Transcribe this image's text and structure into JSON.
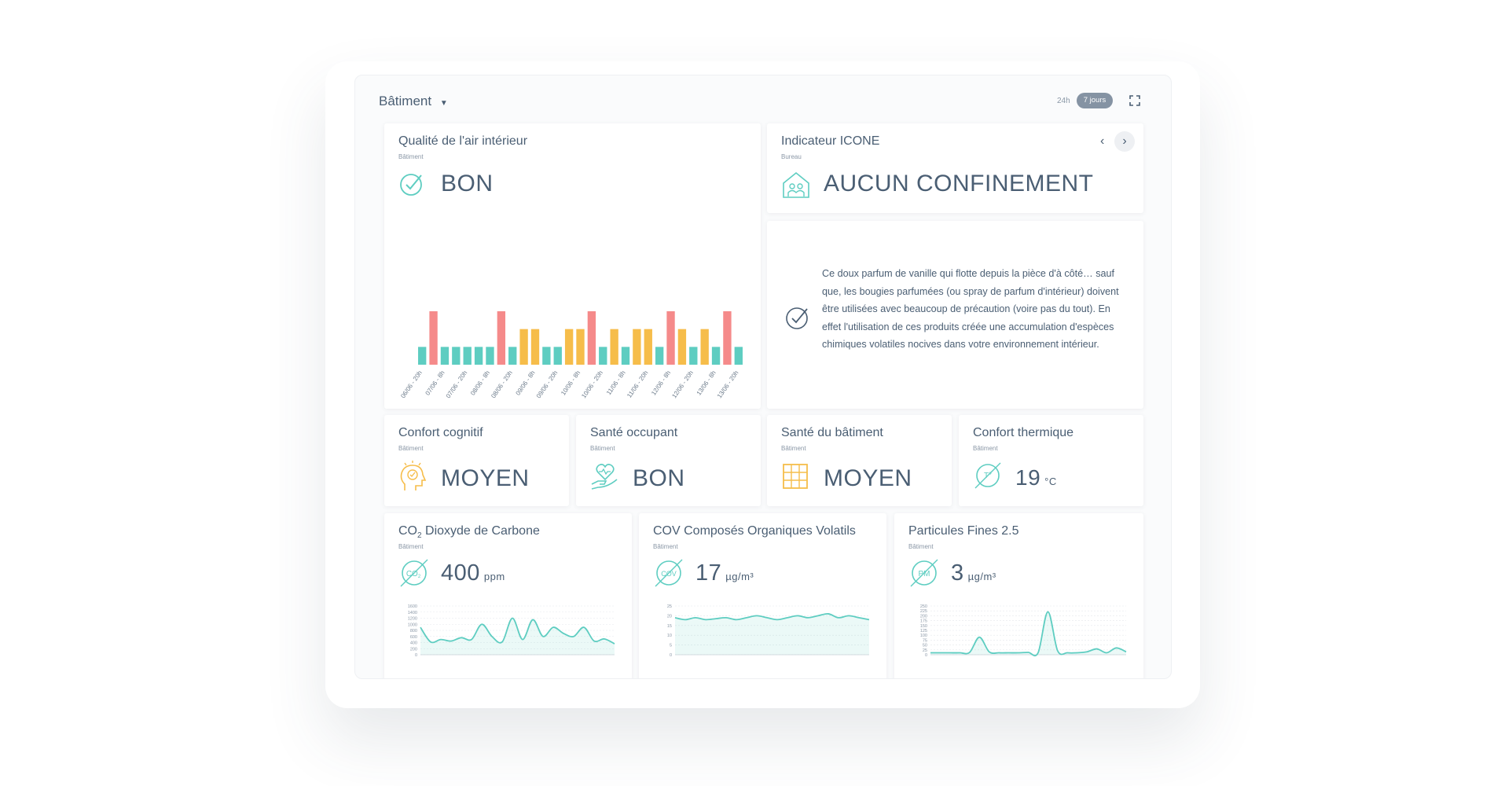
{
  "header": {
    "title": "Bâtiment",
    "ranges": [
      "24h",
      "7 jours"
    ]
  },
  "air_quality": {
    "title": "Qualité de l'air intérieur",
    "subtitle": "Bâtiment",
    "status": "BON"
  },
  "indicator": {
    "title": "Indicateur ICONE",
    "subtitle": "Bureau",
    "status": "AUCUN CONFINEMENT"
  },
  "advice": {
    "text": "Ce doux parfum de vanille qui flotte depuis la pièce d'à côté… sauf que, les bougies parfumées (ou spray de parfum d'intérieur) doivent être utilisées avec beaucoup de précaution (voire pas du tout). En effet l'utilisation de ces produits créée une accumulation d'espèces chimiques volatiles nocives dans votre environnement intérieur."
  },
  "small_cards": [
    {
      "title": "Confort cognitif",
      "subtitle": "Bâtiment",
      "status": "MOYEN"
    },
    {
      "title": "Santé occupant",
      "subtitle": "Bâtiment",
      "status": "BON"
    },
    {
      "title": "Santé du bâtiment",
      "subtitle": "Bâtiment",
      "status": "MOYEN"
    },
    {
      "title": "Confort thermique",
      "subtitle": "Bâtiment",
      "value": 19,
      "unit": "°C"
    }
  ],
  "measure_cards": [
    {
      "title_main": "CO",
      "title_sub": "2",
      "title_rest": " Dioxyde de Carbone",
      "subtitle": "Bâtiment",
      "icon": "CO",
      "icon_sub": "2",
      "value": 400,
      "unit": "ppm"
    },
    {
      "title_main": "COV Composés Organiques Volatils",
      "subtitle": "Bâtiment",
      "icon": "COV",
      "value": 17,
      "unit": "µg/m³"
    },
    {
      "title_main": "Particules Fines 2.5",
      "subtitle": "Bâtiment",
      "icon": "PM",
      "value": 3,
      "unit": "µg/m³"
    }
  ],
  "chart_data": [
    {
      "type": "bar",
      "categories": [
        "06/06 - 20h",
        null,
        "07/06 - 8h",
        null,
        "07/06 - 20h",
        null,
        "08/06 - 8h",
        null,
        "08/06 - 20h",
        null,
        "09/06 - 8h",
        null,
        "09/06 - 20h",
        null,
        "10/06 - 8h",
        null,
        "10/06 - 20h",
        null,
        "11/06 - 8h",
        null,
        "11/06 - 20h",
        null,
        "12/06 - 8h",
        null,
        "12/06 - 20h",
        null,
        "13/06 - 8h",
        null,
        "13/06 - 20h"
      ],
      "values": [
        1,
        3,
        1,
        1,
        1,
        1,
        1,
        3,
        1,
        2,
        2,
        1,
        1,
        2,
        2,
        3,
        1,
        2,
        1,
        2,
        2,
        1,
        3,
        2,
        1,
        2,
        1,
        3,
        1
      ],
      "colors": [
        "#5ecdc1",
        "#f58a8a",
        "#5ecdc1",
        "#5ecdc1",
        "#5ecdc1",
        "#5ecdc1",
        "#5ecdc1",
        "#f58a8a",
        "#5ecdc1",
        "#f6bd4a",
        "#f6bd4a",
        "#5ecdc1",
        "#5ecdc1",
        "#f6bd4a",
        "#f6bd4a",
        "#f58a8a",
        "#5ecdc1",
        "#f6bd4a",
        "#5ecdc1",
        "#f6bd4a",
        "#f6bd4a",
        "#5ecdc1",
        "#f58a8a",
        "#f6bd4a",
        "#5ecdc1",
        "#f6bd4a",
        "#5ecdc1",
        "#f58a8a",
        "#5ecdc1"
      ]
    },
    {
      "type": "line",
      "color": "#5ecdc1",
      "values": [
        900,
        420,
        500,
        450,
        560,
        500,
        1000,
        600,
        420,
        1200,
        500,
        1150,
        600,
        900,
        700,
        600,
        900,
        450,
        520,
        360
      ],
      "ylim": [
        0,
        1600
      ],
      "yticks": [
        0,
        200,
        400,
        600,
        800,
        1000,
        1200,
        1400,
        1600
      ],
      "grid": true
    },
    {
      "type": "line",
      "color": "#5ecdc1",
      "values": [
        19,
        18,
        19,
        18,
        18.5,
        19,
        18,
        19,
        20,
        19,
        18,
        19,
        20,
        19,
        20,
        21,
        19,
        20,
        19,
        18
      ],
      "ylim": [
        0,
        25
      ],
      "yticks": [
        0,
        5,
        10,
        15,
        20,
        25
      ],
      "grid": true
    },
    {
      "type": "line",
      "color": "#5ecdc1",
      "values": [
        10,
        10,
        10,
        10,
        12,
        90,
        15,
        10,
        10,
        10,
        12,
        10,
        220,
        20,
        10,
        10,
        15,
        30,
        10,
        35,
        15
      ],
      "ylim": [
        0,
        250
      ],
      "yticks": [
        0,
        25,
        50,
        75,
        100,
        125,
        150,
        175,
        200,
        225,
        250
      ],
      "grid": true
    }
  ]
}
